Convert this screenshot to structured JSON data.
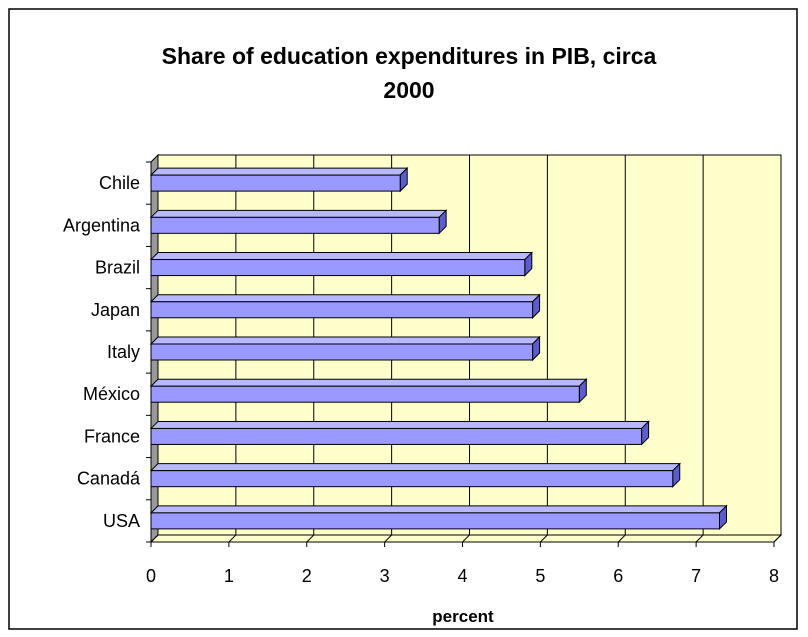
{
  "chart_data": {
    "type": "bar",
    "orientation": "horizontal",
    "title": "Share of education expenditures in PIB, circa 2000",
    "title_lines": [
      "Share of education expenditures in PIB, circa",
      "2000"
    ],
    "xlabel": "percent",
    "ylabel": "",
    "categories": [
      "Chile",
      "Argentina",
      "Brazil",
      "Japan",
      "Italy",
      "México",
      "France",
      "Canadá",
      "USA"
    ],
    "values": [
      3.2,
      3.7,
      4.8,
      4.9,
      4.9,
      5.5,
      6.3,
      6.7,
      7.3
    ],
    "xlim": [
      0,
      8
    ],
    "xticks": [
      "0",
      "1",
      "2",
      "3",
      "4",
      "5",
      "6",
      "7",
      "8"
    ],
    "grid": true,
    "legend": "none",
    "three_d": true,
    "colors": {
      "bar_front": "#9999ff",
      "bar_top": "#b8b8ff",
      "bar_side": "#5c5ccc",
      "plot_back": "#ffffcc",
      "left_wall": "#999999",
      "floor": "#ffffcc",
      "grid": "#000000"
    }
  }
}
